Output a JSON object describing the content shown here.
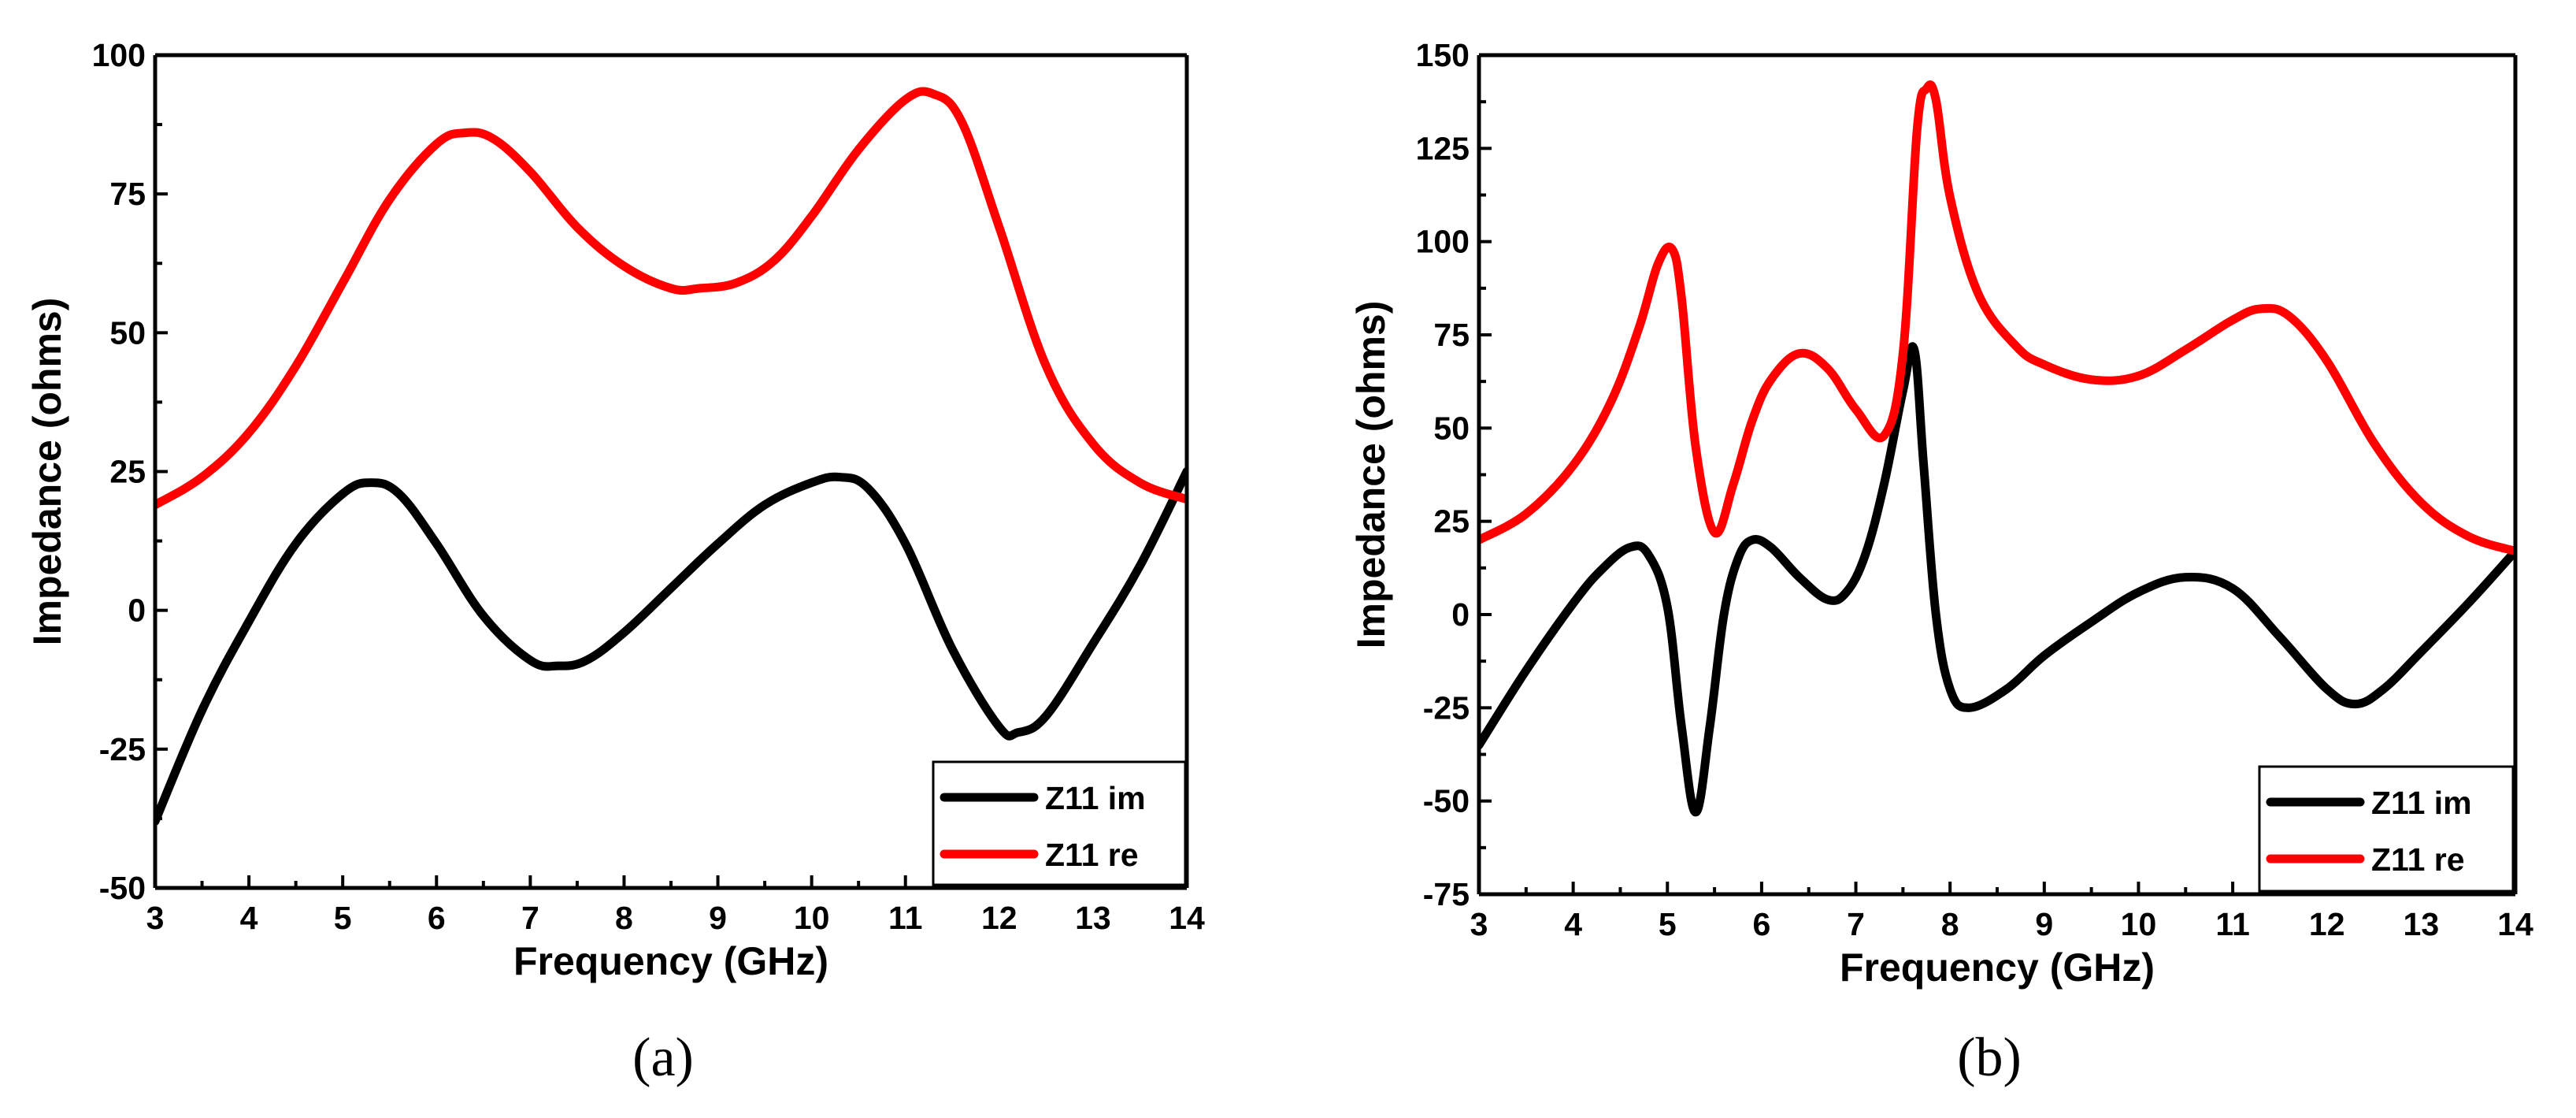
{
  "chart_data": [
    {
      "type": "line",
      "panel_label": "(a)",
      "xlabel": "Frequency (GHz)",
      "ylabel": "Impedance (ohms)",
      "xlim": [
        3,
        14
      ],
      "ylim": [
        -50,
        100
      ],
      "xticks": [
        3,
        4,
        5,
        6,
        7,
        8,
        9,
        10,
        11,
        12,
        13,
        14
      ],
      "yticks": [
        -50,
        -25,
        0,
        25,
        50,
        75,
        100
      ],
      "grid": false,
      "legend_position": "bottom-right",
      "series": [
        {
          "name": "Z11 im",
          "color": "#000000",
          "x": [
            3,
            3.5,
            4,
            4.5,
            5,
            5.3,
            5.6,
            6,
            6.5,
            7,
            7.3,
            7.6,
            8,
            8.5,
            9,
            9.5,
            10,
            10.3,
            10.6,
            11,
            11.5,
            12,
            12.2,
            12.5,
            13,
            13.5,
            14
          ],
          "y": [
            -38,
            -18,
            -2,
            12,
            21,
            23,
            21,
            12,
            -1,
            -9,
            -10,
            -9,
            -4,
            4,
            12,
            19,
            23,
            24,
            22,
            12,
            -7,
            -21,
            -22,
            -19,
            -6,
            8,
            25
          ]
        },
        {
          "name": "Z11 re",
          "color": "#ff0000",
          "x": [
            3,
            3.5,
            4,
            4.5,
            5,
            5.5,
            6,
            6.3,
            6.6,
            7,
            7.5,
            8,
            8.5,
            8.8,
            9.2,
            9.6,
            10,
            10.5,
            11,
            11.3,
            11.6,
            12,
            12.5,
            13,
            13.5,
            14
          ],
          "y": [
            19,
            24,
            32,
            44,
            59,
            74,
            84,
            86,
            85,
            79,
            69,
            62,
            58,
            58,
            59,
            63,
            71,
            83,
            92,
            93,
            88,
            69,
            44,
            30,
            23,
            20
          ]
        }
      ]
    },
    {
      "type": "line",
      "panel_label": "(b)",
      "xlabel": "Frequency (GHz)",
      "ylabel": "Impedance (ohms)",
      "xlim": [
        3,
        14
      ],
      "ylim": [
        -75,
        150
      ],
      "xticks": [
        3,
        4,
        5,
        6,
        7,
        8,
        9,
        10,
        11,
        12,
        13,
        14
      ],
      "yticks": [
        -75,
        -50,
        -25,
        0,
        25,
        50,
        75,
        100,
        125,
        150
      ],
      "grid": false,
      "legend_position": "bottom-right",
      "series": [
        {
          "name": "Z11 im",
          "color": "#000000",
          "x": [
            3,
            3.5,
            4,
            4.3,
            4.6,
            4.8,
            5.0,
            5.15,
            5.3,
            5.45,
            5.6,
            5.75,
            5.9,
            6.1,
            6.4,
            6.7,
            6.9,
            7.1,
            7.3,
            7.5,
            7.62,
            7.72,
            7.85,
            8.0,
            8.2,
            8.6,
            9,
            9.5,
            10,
            10.5,
            11,
            11.5,
            12,
            12.3,
            12.6,
            13,
            13.5,
            14
          ],
          "y": [
            -35,
            -15,
            3,
            12,
            18,
            16,
            2,
            -30,
            -53,
            -30,
            0,
            15,
            20,
            18,
            10,
            4,
            6,
            16,
            35,
            60,
            71,
            40,
            0,
            -20,
            -25,
            -20,
            -11,
            -2,
            6,
            10,
            7,
            -6,
            -20,
            -24,
            -20,
            -10,
            3,
            17
          ]
        },
        {
          "name": "Z11 re",
          "color": "#ff0000",
          "x": [
            3,
            3.5,
            4,
            4.4,
            4.7,
            4.9,
            5.05,
            5.15,
            5.3,
            5.5,
            5.7,
            5.9,
            6.1,
            6.4,
            6.7,
            7.0,
            7.3,
            7.5,
            7.65,
            7.75,
            7.85,
            8.0,
            8.3,
            8.7,
            9,
            9.5,
            10,
            10.5,
            11,
            11.3,
            11.6,
            12,
            12.5,
            13,
            13.5,
            14
          ],
          "y": [
            20,
            27,
            40,
            57,
            77,
            94,
            98,
            85,
            45,
            22,
            35,
            52,
            63,
            70,
            66,
            55,
            48,
            70,
            130,
            141,
            138,
            112,
            86,
            72,
            67,
            63,
            64,
            71,
            79,
            82,
            80,
            68,
            46,
            30,
            21,
            17
          ]
        }
      ]
    }
  ]
}
